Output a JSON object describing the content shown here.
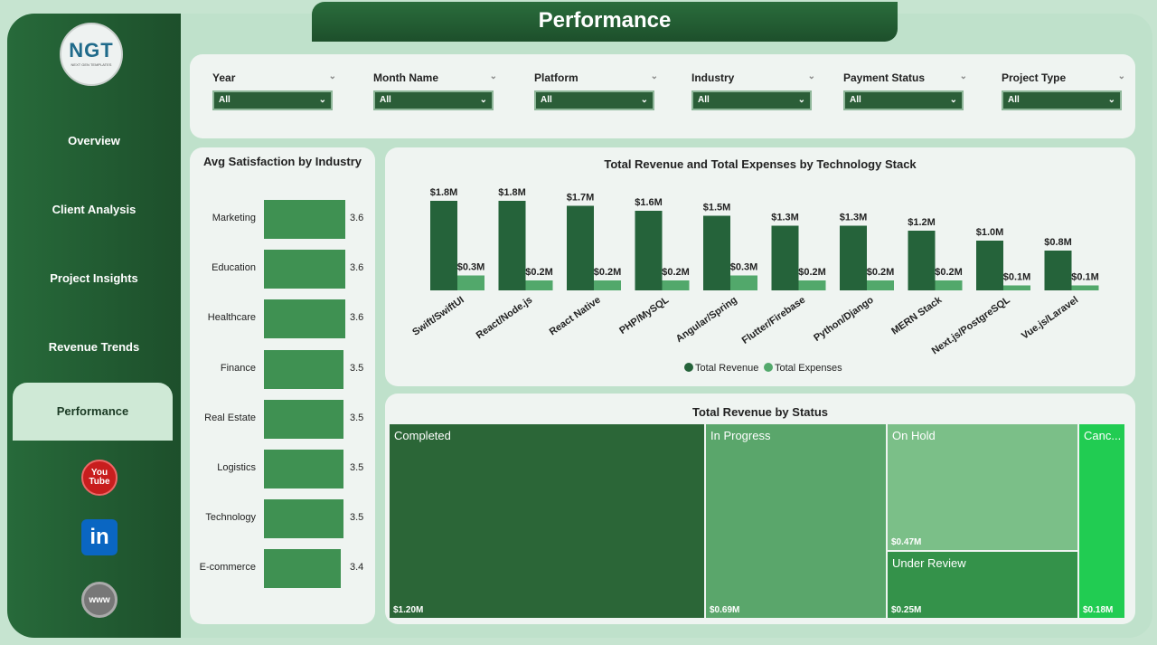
{
  "title": "Performance",
  "logo": {
    "text": "NGT",
    "subtitle": "NEXT GEN TEMPLATES"
  },
  "nav": [
    {
      "label": "Overview"
    },
    {
      "label": "Client Analysis"
    },
    {
      "label": "Project Insights"
    },
    {
      "label": "Revenue Trends"
    },
    {
      "label": "Performance",
      "selected": true
    }
  ],
  "social": [
    {
      "icon": "youtube-icon",
      "label": "You Tube"
    },
    {
      "icon": "linkedin-icon",
      "label": "in"
    },
    {
      "icon": "globe-icon",
      "label": "www"
    }
  ],
  "filters": [
    {
      "label": "Year",
      "value": "All"
    },
    {
      "label": "Month Name",
      "value": "All"
    },
    {
      "label": "Platform",
      "value": "All"
    },
    {
      "label": "Industry",
      "value": "All"
    },
    {
      "label": "Payment Status",
      "value": "All"
    },
    {
      "label": "Project Type",
      "value": "All"
    }
  ],
  "satisfaction": {
    "title": "Avg Satisfaction by Industry",
    "items": [
      {
        "label": "Marketing",
        "value": "3.6"
      },
      {
        "label": "Education",
        "value": "3.6"
      },
      {
        "label": "Healthcare",
        "value": "3.6"
      },
      {
        "label": "Finance",
        "value": "3.5"
      },
      {
        "label": "Real Estate",
        "value": "3.5"
      },
      {
        "label": "Logistics",
        "value": "3.5"
      },
      {
        "label": "Technology",
        "value": "3.5"
      },
      {
        "label": "E-commerce",
        "value": "3.4"
      }
    ]
  },
  "chart_data": [
    {
      "type": "bar",
      "title": "Total Revenue and Total Expenses by Technology Stack",
      "categories": [
        "Swift/SwiftUI",
        "React/Node.js",
        "React Native",
        "PHP/MySQL",
        "Angular/Spring",
        "Flutter/Firebase",
        "Python/Django",
        "MERN Stack",
        "Next.js/PostgreSQL",
        "Vue.js/Laravel"
      ],
      "series": [
        {
          "name": "Total Revenue",
          "color": "#25633a",
          "values": [
            1.8,
            1.8,
            1.7,
            1.6,
            1.5,
            1.3,
            1.3,
            1.2,
            1.0,
            0.8
          ],
          "labels": [
            "$1.8M",
            "$1.8M",
            "$1.7M",
            "$1.6M",
            "$1.5M",
            "$1.3M",
            "$1.3M",
            "$1.2M",
            "$1.0M",
            "$0.8M"
          ]
        },
        {
          "name": "Total Expenses",
          "color": "#52a86b",
          "values": [
            0.3,
            0.2,
            0.2,
            0.2,
            0.3,
            0.2,
            0.2,
            0.2,
            0.1,
            0.1
          ],
          "labels": [
            "$0.3M",
            "$0.2M",
            "$0.2M",
            "$0.2M",
            "$0.3M",
            "$0.2M",
            "$0.2M",
            "$0.2M",
            "$0.1M",
            "$0.1M"
          ]
        }
      ],
      "legend": "bottom"
    },
    {
      "type": "treemap",
      "title": "Total Revenue by Status",
      "items": [
        {
          "label": "Completed",
          "value": "$1.20M",
          "color": "#2b6637"
        },
        {
          "label": "In Progress",
          "value": "$0.69M",
          "color": "#5aa66b"
        },
        {
          "label": "On Hold",
          "value": "$0.47M",
          "color": "#7bbf88"
        },
        {
          "label": "Under Review",
          "value": "$0.25M",
          "color": "#34924a"
        },
        {
          "label": "Canc...",
          "value": "$0.18M",
          "color": "#21cc52"
        }
      ]
    }
  ]
}
